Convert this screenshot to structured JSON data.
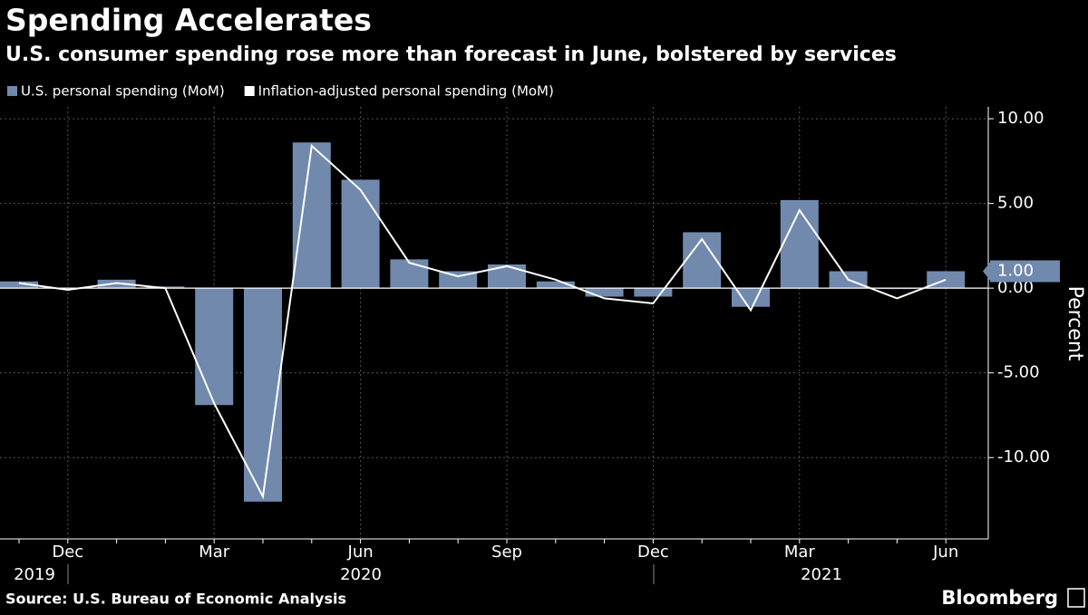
{
  "chart_data": {
    "type": "bar_line",
    "title": "Spending Accelerates",
    "subtitle": "U.S. consumer spending rose more than forecast in June, bolstered by services",
    "source": "Source: U.S. Bureau of Economic Analysis",
    "brand": "Bloomberg",
    "y_label": "Percent",
    "categories": [
      null,
      "Dec",
      null,
      null,
      "Mar",
      null,
      null,
      "Jun",
      null,
      null,
      "Sep",
      null,
      null,
      "Dec",
      null,
      null,
      "Mar",
      null,
      null,
      "Jun"
    ],
    "year_labels": [
      "2019",
      "2020",
      "2021"
    ],
    "series": [
      {
        "name": "U.S. personal spending (MoM)",
        "kind": "bar",
        "color": "#7189ad",
        "values": [
          0.4,
          0.0,
          0.5,
          0.1,
          -6.9,
          -12.6,
          8.6,
          6.4,
          1.7,
          1.0,
          1.4,
          0.4,
          -0.5,
          -0.5,
          3.3,
          -1.1,
          5.2,
          1.0,
          -0.05,
          1.0
        ],
        "value_labels": [
          null,
          null,
          null,
          null,
          null,
          null,
          null,
          null,
          null,
          null,
          null,
          null,
          null,
          null,
          null,
          null,
          null,
          null,
          null,
          "1.00"
        ]
      },
      {
        "name": "Inflation-adjusted personal spending (MoM)",
        "kind": "line",
        "color": "#ffffff",
        "values": [
          0.3,
          -0.1,
          0.3,
          0.0,
          -6.8,
          -12.3,
          8.4,
          5.8,
          1.5,
          0.7,
          1.3,
          0.5,
          -0.6,
          -0.9,
          2.9,
          -1.3,
          4.6,
          0.5,
          -0.6,
          0.5
        ]
      }
    ],
    "ylim": [
      -14.8,
      10.7
    ],
    "yticks": [
      {
        "value": 10,
        "label": "10.00"
      },
      {
        "value": 5,
        "label": "5.00"
      },
      {
        "value": 0,
        "label": "0.00"
      },
      {
        "value": -5,
        "label": "-5.00"
      },
      {
        "value": -10,
        "label": "-10.00"
      }
    ],
    "grid": true
  }
}
